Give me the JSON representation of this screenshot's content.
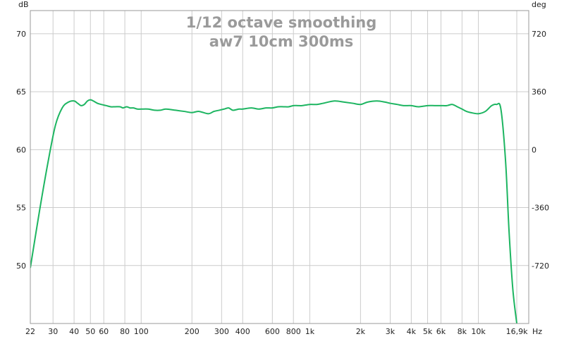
{
  "chart_data": {
    "type": "line",
    "title": "1/12 octave smoothing",
    "subtitle": "aw7 10cm 300ms",
    "ylabel_left": "dB",
    "ylabel_right": "deg",
    "xunit": "Hz",
    "xscale": "log",
    "xlim": [
      22,
      19900
    ],
    "ylim": [
      45,
      72
    ],
    "yticks_left": [
      70,
      65,
      60,
      55,
      50
    ],
    "yticks_right": [
      "720",
      "360",
      "0",
      "-360",
      "-720"
    ],
    "xticks": [
      {
        "v": 22,
        "label": "22"
      },
      {
        "v": 30,
        "label": "30"
      },
      {
        "v": 40,
        "label": "40"
      },
      {
        "v": 50,
        "label": "50"
      },
      {
        "v": 60,
        "label": "60"
      },
      {
        "v": 80,
        "label": "80"
      },
      {
        "v": 100,
        "label": "100"
      },
      {
        "v": 200,
        "label": "200"
      },
      {
        "v": 300,
        "label": "300"
      },
      {
        "v": 400,
        "label": "400"
      },
      {
        "v": 600,
        "label": "600"
      },
      {
        "v": 800,
        "label": "800"
      },
      {
        "v": 1000,
        "label": "1k"
      },
      {
        "v": 2000,
        "label": "2k"
      },
      {
        "v": 3000,
        "label": "3k"
      },
      {
        "v": 4000,
        "label": "4k"
      },
      {
        "v": 5000,
        "label": "5k"
      },
      {
        "v": 6000,
        "label": "6k"
      },
      {
        "v": 8000,
        "label": "8k"
      },
      {
        "v": 10000,
        "label": "10k"
      },
      {
        "v": 16900,
        "label": "16,9k"
      }
    ],
    "grid": true,
    "line_color": "#1db561",
    "series": [
      {
        "x": [
          22,
          25,
          28,
          31,
          34,
          37,
          40,
          42,
          44,
          46,
          48,
          50,
          52,
          55,
          58,
          62,
          66,
          70,
          75,
          78,
          82,
          86,
          90,
          95,
          100,
          110,
          120,
          130,
          140,
          160,
          180,
          200,
          220,
          250,
          270,
          290,
          310,
          330,
          350,
          380,
          400,
          450,
          500,
          550,
          600,
          650,
          700,
          750,
          800,
          850,
          900,
          1000,
          1100,
          1200,
          1400,
          1600,
          1800,
          2000,
          2200,
          2500,
          2800,
          3000,
          3300,
          3600,
          4000,
          4400,
          5000,
          5500,
          6000,
          6500,
          7000,
          7500,
          8000,
          8500,
          9000,
          10000,
          11000,
          12000,
          12800,
          13600,
          14500,
          15200,
          16000,
          16900
        ],
        "y": [
          49.8,
          54.8,
          58.9,
          62.1,
          63.6,
          64.1,
          64.2,
          64.0,
          63.8,
          63.9,
          64.2,
          64.3,
          64.2,
          64.0,
          63.9,
          63.8,
          63.7,
          63.7,
          63.7,
          63.6,
          63.7,
          63.6,
          63.6,
          63.5,
          63.5,
          63.5,
          63.4,
          63.4,
          63.5,
          63.4,
          63.3,
          63.2,
          63.3,
          63.1,
          63.3,
          63.4,
          63.5,
          63.6,
          63.4,
          63.5,
          63.5,
          63.6,
          63.5,
          63.6,
          63.6,
          63.7,
          63.7,
          63.7,
          63.8,
          63.8,
          63.8,
          63.9,
          63.9,
          64.0,
          64.2,
          64.1,
          64.0,
          63.9,
          64.1,
          64.2,
          64.1,
          64.0,
          63.9,
          63.8,
          63.8,
          63.7,
          63.8,
          63.8,
          63.8,
          63.8,
          63.9,
          63.7,
          63.5,
          63.3,
          63.2,
          63.1,
          63.3,
          63.8,
          63.9,
          63.5,
          59.0,
          53.0,
          48.0,
          45.0
        ]
      }
    ]
  }
}
